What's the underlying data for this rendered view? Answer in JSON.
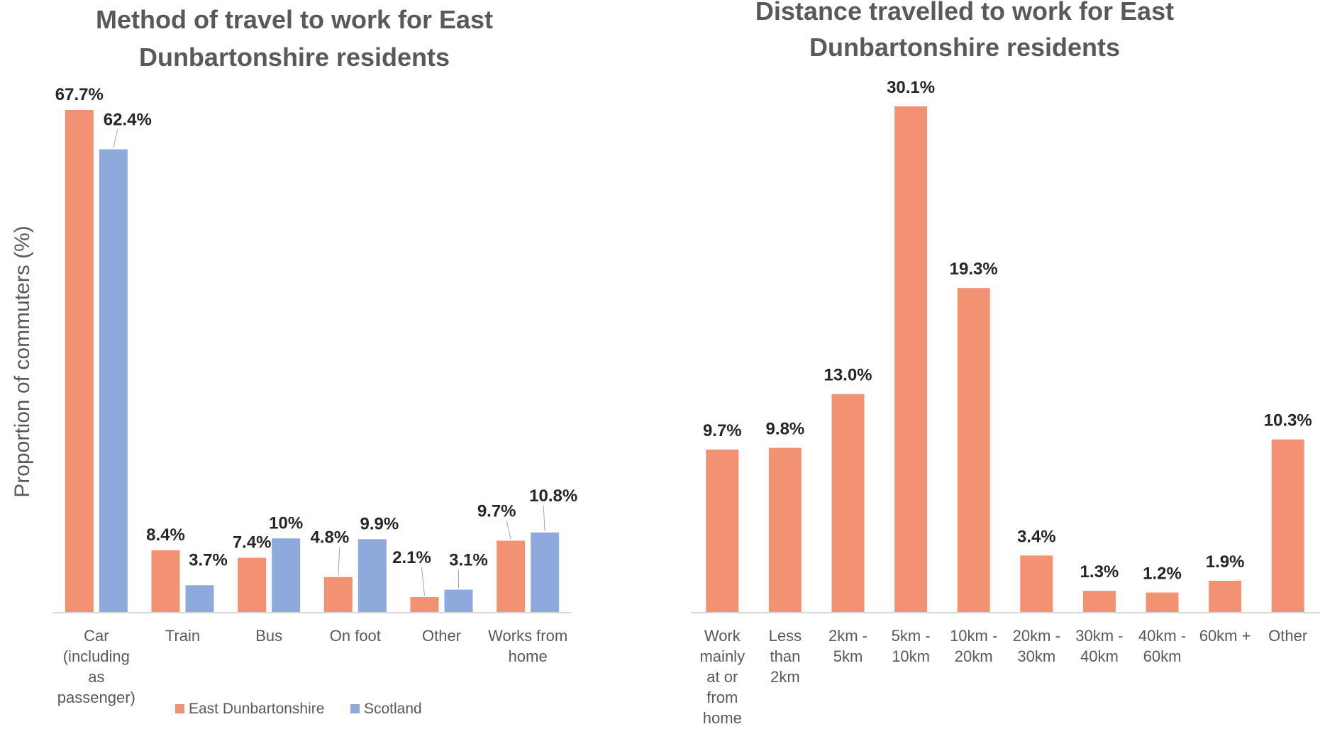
{
  "colors": {
    "east_dunbartonshire": "#F29273",
    "scotland": "#8EA9DB",
    "title": "#595959",
    "tick_label": "#595959",
    "data_label": "#262626",
    "axis_line": "#D9D9D9",
    "leader_line": "#A6A6A6"
  },
  "chart_data": [
    {
      "type": "bar",
      "title": "Method of travel to work for East Dunbartonshire residents",
      "title_lines": [
        "Method of travel to work for East",
        "Dunbartonshire residents"
      ],
      "xlabel": "",
      "ylabel": "Proportion of commuters (%)",
      "ylim": [
        0,
        67.7
      ],
      "grid": false,
      "legend_position": "bottom",
      "categories": [
        "Car (including as passenger)",
        "Train",
        "Bus",
        "On foot",
        "Other",
        "Works from home"
      ],
      "category_label_lines": [
        [
          "Car",
          "(including",
          "as",
          "passenger)"
        ],
        [
          "Train"
        ],
        [
          "Bus"
        ],
        [
          "On foot"
        ],
        [
          "Other"
        ],
        [
          "Works from",
          "home"
        ]
      ],
      "series": [
        {
          "name": "East Dunbartonshire",
          "color_key": "east_dunbartonshire",
          "values": [
            67.7,
            8.4,
            7.4,
            4.8,
            2.1,
            9.7
          ],
          "labels": [
            "67.7%",
            "8.4%",
            "7.4%",
            "4.8%",
            "2.1%",
            "9.7%"
          ]
        },
        {
          "name": "Scotland",
          "color_key": "scotland",
          "values": [
            62.4,
            3.7,
            10,
            9.9,
            3.1,
            10.8
          ],
          "labels": [
            "62.4%",
            "3.7%",
            "10%",
            "9.9%",
            "3.1%",
            "10.8%"
          ]
        }
      ]
    },
    {
      "type": "bar",
      "title": "Distance travelled to work for East Dunbartonshire residents",
      "title_lines": [
        "Distance travelled to work for East",
        "Dunbartonshire residents"
      ],
      "xlabel": "",
      "ylabel": "",
      "ylim": [
        0,
        30.1
      ],
      "grid": false,
      "legend_position": "none",
      "categories": [
        "Work mainly at or from home",
        "Less than 2km",
        "2km - 5km",
        "5km - 10km",
        "10km - 20km",
        "20km - 30km",
        "30km - 40km",
        "40km - 60km",
        "60km +",
        "Other"
      ],
      "category_label_lines": [
        [
          "Work",
          "mainly",
          "at or",
          "from",
          "home"
        ],
        [
          "Less",
          "than",
          "2km"
        ],
        [
          "2km -",
          "5km"
        ],
        [
          "5km -",
          "10km"
        ],
        [
          "10km -",
          "20km"
        ],
        [
          "20km -",
          "30km"
        ],
        [
          "30km -",
          "40km"
        ],
        [
          "40km -",
          "60km"
        ],
        [
          "60km +"
        ],
        [
          "Other"
        ]
      ],
      "series": [
        {
          "color_key": "east_dunbartonshire",
          "values": [
            9.7,
            9.8,
            13.0,
            30.1,
            19.3,
            3.4,
            1.3,
            1.2,
            1.9,
            10.3
          ],
          "labels": [
            "9.7%",
            "9.8%",
            "13.0%",
            "30.1%",
            "19.3%",
            "3.4%",
            "1.3%",
            "1.2%",
            "1.9%",
            "10.3%"
          ]
        }
      ]
    }
  ]
}
